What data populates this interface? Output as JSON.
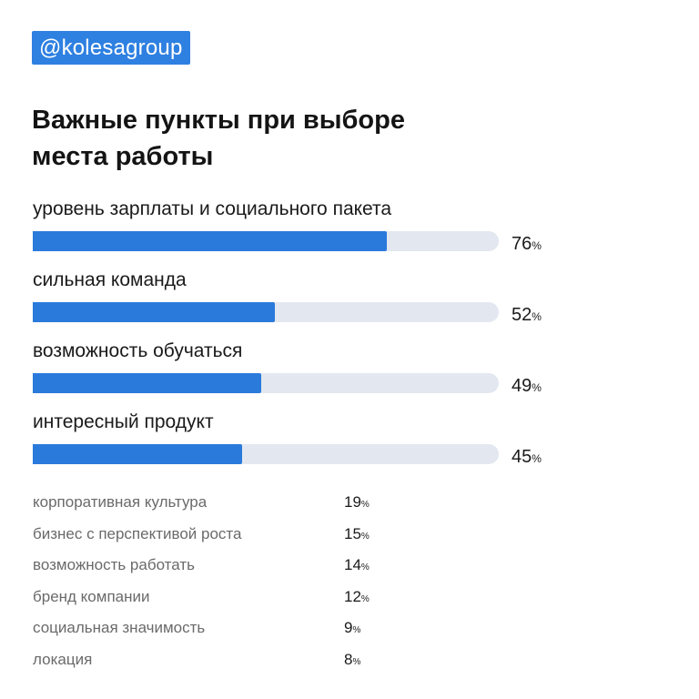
{
  "badge": "@kolesagroup",
  "title_line1": "Важные пункты при выборе",
  "title_line2": "места работы",
  "chart_data": {
    "type": "bar",
    "orientation": "horizontal",
    "unit": "%",
    "xlim": [
      0,
      100
    ],
    "bars": [
      {
        "label": "уровень зарплаты и социального пакета",
        "value": 76
      },
      {
        "label": "сильная команда",
        "value": 52
      },
      {
        "label": "возможность обучаться",
        "value": 49
      },
      {
        "label": "интересный продукт",
        "value": 45
      }
    ],
    "table": [
      {
        "label": "корпоративная культура",
        "value": 19
      },
      {
        "label": "бизнес с перспективой роста",
        "value": 15
      },
      {
        "label": "возможность работать",
        "value": 14
      },
      {
        "label": "бренд компании",
        "value": 12
      },
      {
        "label": "социальная значимость",
        "value": 9
      },
      {
        "label": "локация",
        "value": 8
      }
    ],
    "colors": {
      "bar": "#2a7adb",
      "track": "#e3e8f0",
      "badge": "#2e80e1"
    }
  }
}
